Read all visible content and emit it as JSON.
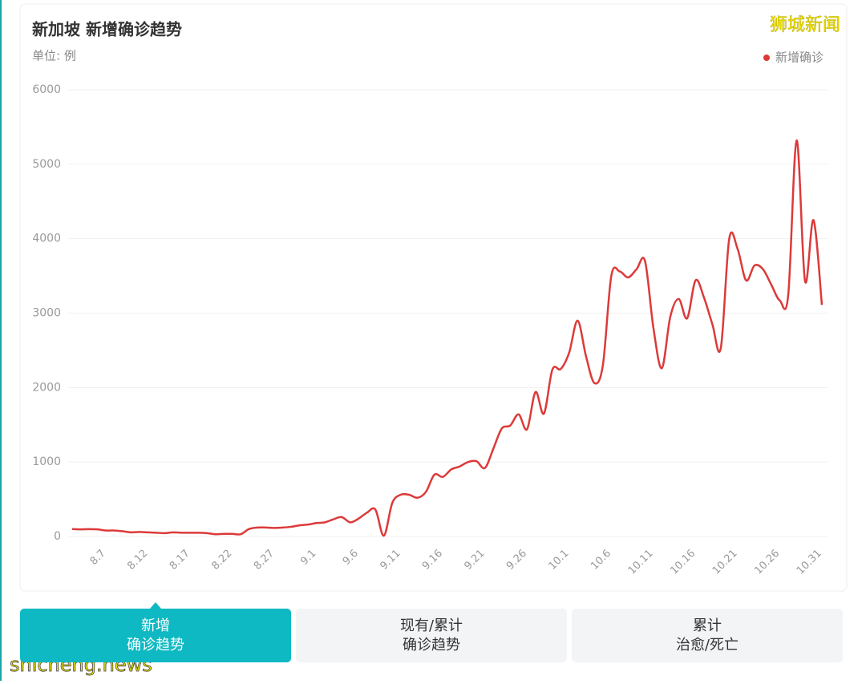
{
  "chart_data": {
    "type": "line",
    "title": "新加坡 新增确诊趋势",
    "subtitle": "单位: 例",
    "categories": [
      null,
      null,
      null,
      "8.7",
      null,
      null,
      null,
      null,
      "8.12",
      null,
      null,
      null,
      null,
      "8.17",
      null,
      null,
      null,
      null,
      "8.22",
      null,
      null,
      null,
      null,
      "8.27",
      null,
      null,
      null,
      null,
      "9.1",
      null,
      null,
      null,
      null,
      "9.6",
      null,
      null,
      null,
      null,
      "9.11",
      null,
      null,
      null,
      null,
      "9.16",
      null,
      null,
      null,
      null,
      "9.21",
      null,
      null,
      null,
      null,
      "9.26",
      null,
      null,
      null,
      null,
      "10.1",
      null,
      null,
      null,
      null,
      "10.6",
      null,
      null,
      null,
      null,
      "10.11",
      null,
      null,
      null,
      null,
      "10.16",
      null,
      null,
      null,
      null,
      "10.21",
      null,
      null,
      null,
      null,
      "10.26",
      null,
      null,
      null,
      null,
      "10.31",
      null
    ],
    "series": [
      {
        "name": "新增确诊",
        "color": "#dc3a3a",
        "values": [
          100,
          95,
          98,
          95,
          80,
          80,
          70,
          55,
          60,
          55,
          50,
          45,
          55,
          50,
          50,
          50,
          45,
          30,
          35,
          35,
          30,
          100,
          120,
          120,
          115,
          120,
          130,
          150,
          160,
          180,
          190,
          230,
          260,
          190,
          240,
          320,
          360,
          10,
          450,
          560,
          560,
          520,
          600,
          830,
          800,
          900,
          940,
          1000,
          1010,
          920,
          1180,
          1450,
          1490,
          1640,
          1440,
          1940,
          1650,
          2240,
          2250,
          2470,
          2900,
          2420,
          2060,
          2300,
          3500,
          3560,
          3480,
          3590,
          3700,
          2800,
          2260,
          2950,
          3190,
          2930,
          3440,
          3210,
          2850,
          2530,
          4000,
          3860,
          3440,
          3640,
          3590,
          3380,
          3170,
          3240,
          5320,
          3430,
          4250,
          3110
        ]
      }
    ],
    "ylim": [
      0,
      6000
    ],
    "yticks": [
      0,
      1000,
      2000,
      3000,
      4000,
      5000,
      6000
    ],
    "grid": true,
    "legend": "top-right"
  },
  "tabs": [
    {
      "lines": [
        "新增",
        "确诊趋势"
      ],
      "active": true
    },
    {
      "lines": [
        "现有/累计",
        "确诊趋势"
      ],
      "active": false
    },
    {
      "lines": [
        "累计",
        "治愈/死亡"
      ],
      "active": false
    }
  ],
  "watermarks": [
    "狮城新闻",
    "shicheng.news"
  ]
}
